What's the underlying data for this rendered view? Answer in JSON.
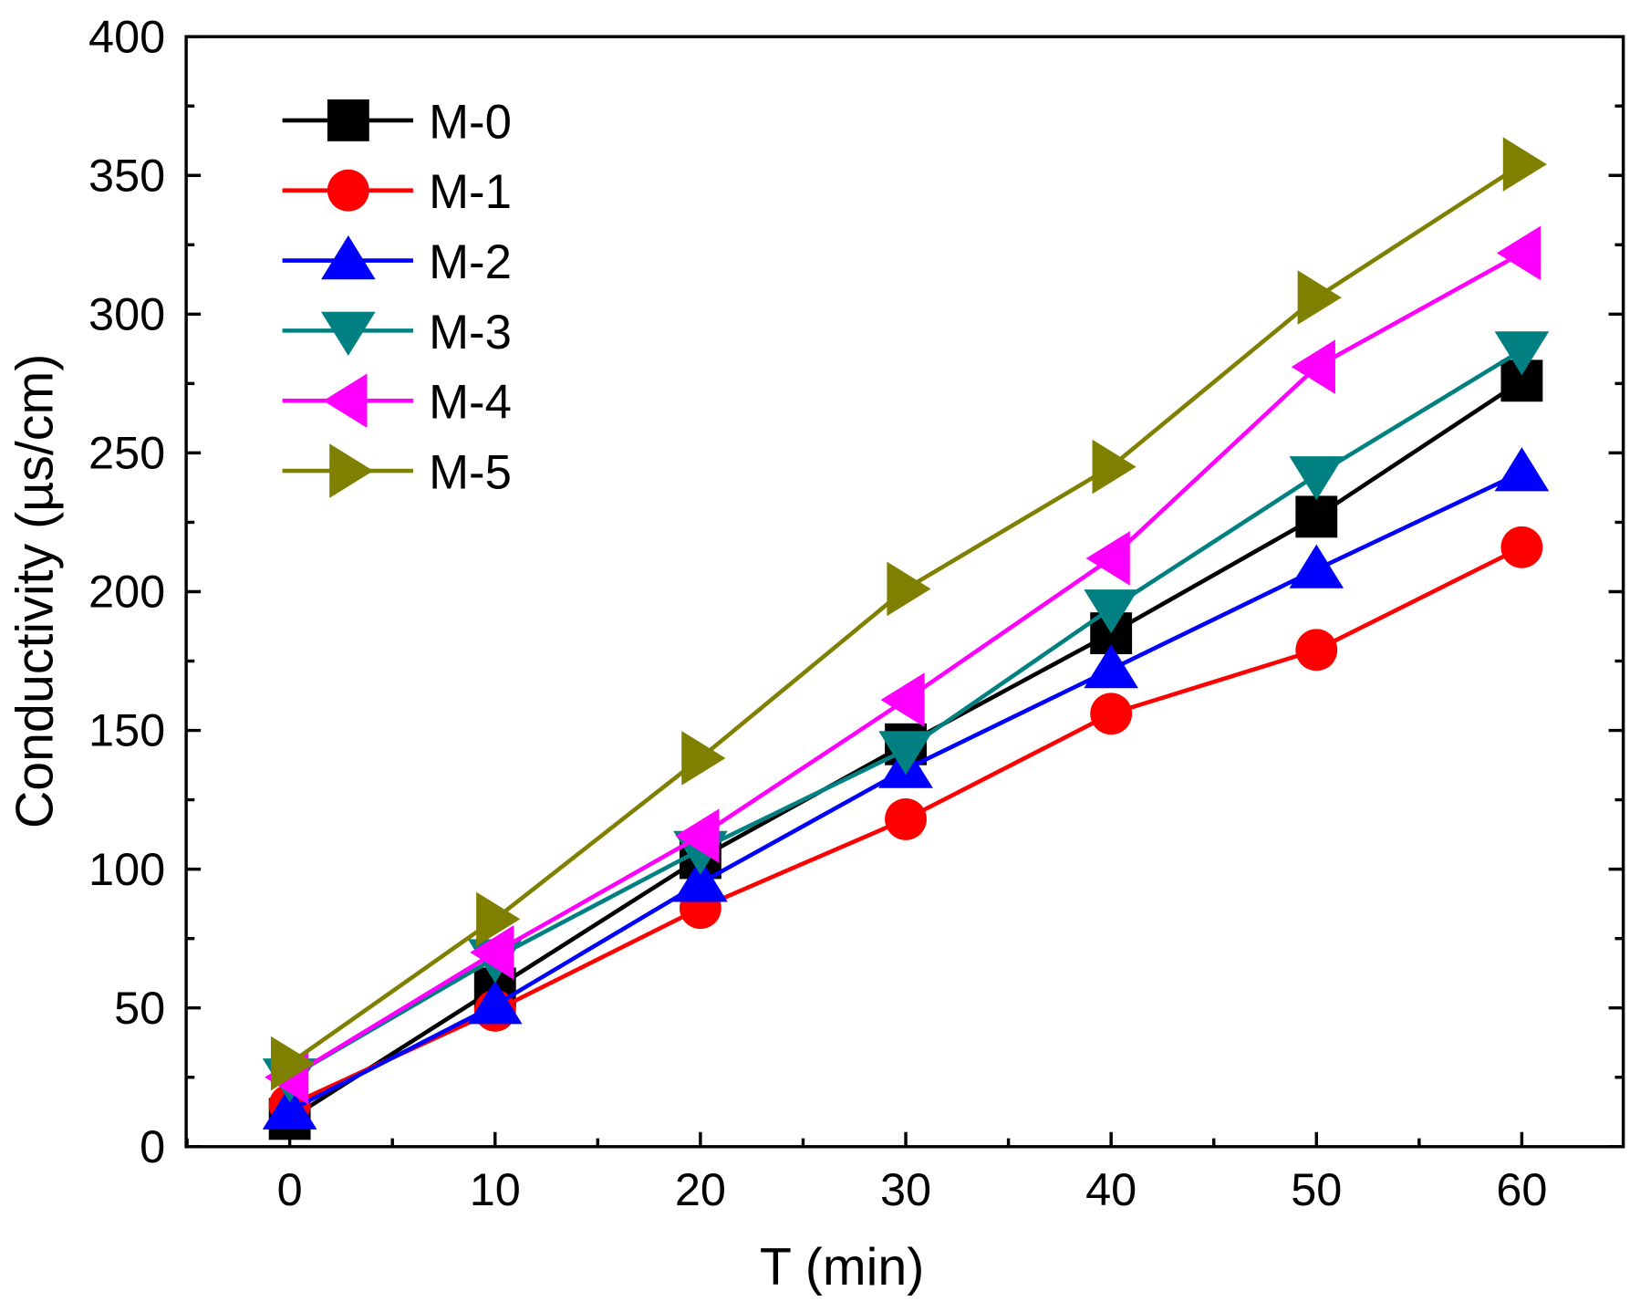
{
  "chart_data": {
    "type": "line",
    "title": "",
    "xlabel": "T (min)",
    "ylabel": "Conductivity (µs/cm)",
    "xlim": [
      -5,
      65
    ],
    "ylim": [
      0,
      400
    ],
    "x": [
      0,
      10,
      20,
      30,
      40,
      50,
      60
    ],
    "xticks": [
      "0",
      "10",
      "20",
      "30",
      "40",
      "50",
      "60"
    ],
    "yticks": [
      "0",
      "50",
      "100",
      "150",
      "200",
      "250",
      "300",
      "350",
      "400"
    ],
    "legend_position": "top-left",
    "grid": false,
    "series": [
      {
        "name": "M-0",
        "color": "#000000",
        "marker": "square",
        "values": [
          10,
          57,
          104,
          145,
          185,
          227,
          276
        ]
      },
      {
        "name": "M-1",
        "color": "#ff0000",
        "marker": "circle",
        "values": [
          15,
          49,
          86,
          118,
          156,
          179,
          216
        ]
      },
      {
        "name": "M-2",
        "color": "#0000ff",
        "marker": "triangle-up",
        "values": [
          13,
          51,
          95,
          136,
          172,
          208,
          243
        ]
      },
      {
        "name": "M-3",
        "color": "#008080",
        "marker": "triangle-down",
        "values": [
          25,
          68,
          107,
          143,
          194,
          242,
          287
        ]
      },
      {
        "name": "M-4",
        "color": "#ff00ff",
        "marker": "triangle-left",
        "values": [
          25,
          70,
          112,
          161,
          212,
          281,
          322
        ]
      },
      {
        "name": "M-5",
        "color": "#808000",
        "marker": "triangle-right",
        "values": [
          30,
          82,
          140,
          201,
          245,
          306,
          354
        ]
      }
    ]
  }
}
